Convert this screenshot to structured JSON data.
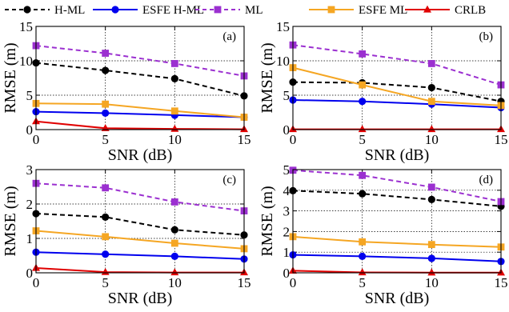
{
  "legend": {
    "placement": "top",
    "entries": [
      {
        "label": "H-ML",
        "color": "#000000",
        "dash": true,
        "marker": "circle"
      },
      {
        "label": "ESFE H-ML",
        "color": "#0000ee",
        "dash": false,
        "marker": "circle"
      },
      {
        "label": "ML",
        "color": "#9b30d0",
        "dash": true,
        "marker": "square"
      },
      {
        "label": "ESFE ML",
        "color": "#f5a623",
        "dash": false,
        "marker": "square"
      },
      {
        "label": "CRLB",
        "color": "#e00000",
        "dash": false,
        "marker": "triangle"
      }
    ]
  },
  "chart_data": [
    {
      "type": "line",
      "panel_label": "(a)",
      "xlabel": "SNR (dB)",
      "ylabel": "RMSE (m)",
      "x": [
        0,
        5,
        10,
        15
      ],
      "xticks": [
        "0",
        "5",
        "10",
        "15"
      ],
      "xlim": [
        0,
        15
      ],
      "ylim": [
        0,
        15
      ],
      "yticks": [
        "0",
        "5",
        "10",
        "15"
      ],
      "grid": true,
      "series": [
        {
          "name": "H-ML",
          "values": [
            9.7,
            8.6,
            7.4,
            4.9
          ]
        },
        {
          "name": "ESFE H-ML",
          "values": [
            2.6,
            2.4,
            2.1,
            1.8
          ]
        },
        {
          "name": "ML",
          "values": [
            12.2,
            11.1,
            9.6,
            7.8
          ]
        },
        {
          "name": "ESFE ML",
          "values": [
            3.8,
            3.7,
            2.7,
            1.8
          ]
        },
        {
          "name": "CRLB",
          "values": [
            1.2,
            0.2,
            0.1,
            0.05
          ]
        }
      ]
    },
    {
      "type": "line",
      "panel_label": "(b)",
      "xlabel": "SNR (dB)",
      "ylabel": "RMSE (m)",
      "x": [
        0,
        5,
        10,
        15
      ],
      "xticks": [
        "0",
        "5",
        "10",
        "15"
      ],
      "xlim": [
        0,
        15
      ],
      "ylim": [
        0,
        15
      ],
      "yticks": [
        "0",
        "5",
        "10",
        "15"
      ],
      "grid": true,
      "series": [
        {
          "name": "H-ML",
          "values": [
            6.9,
            6.8,
            6.1,
            4.1
          ]
        },
        {
          "name": "ESFE H-ML",
          "values": [
            4.3,
            4.1,
            3.7,
            3.2
          ]
        },
        {
          "name": "ML",
          "values": [
            12.3,
            11.0,
            9.6,
            6.5
          ]
        },
        {
          "name": "ESFE ML",
          "values": [
            9.0,
            6.5,
            4.1,
            3.5
          ]
        },
        {
          "name": "CRLB",
          "values": [
            0.05,
            0.05,
            0.05,
            0.05
          ]
        }
      ]
    },
    {
      "type": "line",
      "panel_label": "(c)",
      "xlabel": "SNR (dB)",
      "ylabel": "RMSE (m)",
      "x": [
        0,
        5,
        10,
        15
      ],
      "xticks": [
        "0",
        "5",
        "10",
        "15"
      ],
      "xlim": [
        0,
        15
      ],
      "ylim": [
        0,
        3
      ],
      "yticks": [
        "0",
        "1",
        "2",
        "3"
      ],
      "grid": true,
      "series": [
        {
          "name": "H-ML",
          "values": [
            1.72,
            1.62,
            1.25,
            1.1
          ]
        },
        {
          "name": "ESFE H-ML",
          "values": [
            0.6,
            0.54,
            0.48,
            0.4
          ]
        },
        {
          "name": "ML",
          "values": [
            2.6,
            2.47,
            2.06,
            1.8
          ]
        },
        {
          "name": "ESFE ML",
          "values": [
            1.22,
            1.05,
            0.86,
            0.7
          ]
        },
        {
          "name": "CRLB",
          "values": [
            0.14,
            0.02,
            0.01,
            0.01
          ]
        }
      ]
    },
    {
      "type": "line",
      "panel_label": "(d)",
      "xlabel": "SNR (dB)",
      "ylabel": "RMSE (m)",
      "x": [
        0,
        5,
        10,
        15
      ],
      "xticks": [
        "0",
        "5",
        "10",
        "15"
      ],
      "xlim": [
        0,
        15
      ],
      "ylim": [
        0,
        5
      ],
      "yticks": [
        "0",
        "1",
        "2",
        "3",
        "4",
        "5"
      ],
      "grid": true,
      "series": [
        {
          "name": "H-ML",
          "values": [
            3.98,
            3.83,
            3.55,
            3.22
          ]
        },
        {
          "name": "ESFE H-ML",
          "values": [
            0.87,
            0.8,
            0.7,
            0.55
          ]
        },
        {
          "name": "ML",
          "values": [
            4.97,
            4.72,
            4.15,
            3.45
          ]
        },
        {
          "name": "ESFE ML",
          "values": [
            1.75,
            1.5,
            1.37,
            1.25
          ]
        },
        {
          "name": "CRLB",
          "values": [
            0.1,
            0.02,
            0.01,
            0.01
          ]
        }
      ]
    }
  ]
}
